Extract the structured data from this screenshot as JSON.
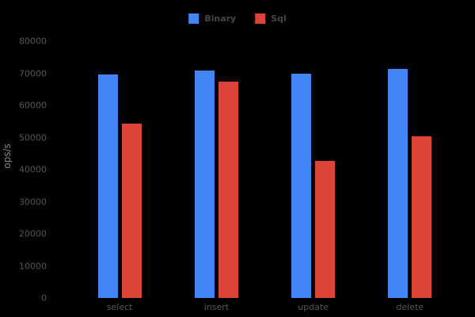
{
  "chart_data": {
    "type": "bar",
    "title": "",
    "xlabel": "",
    "ylabel": "ops/s",
    "categories": [
      "select",
      "insert",
      "update",
      "delete"
    ],
    "series": [
      {
        "name": "Binary",
        "color": "#4285f4",
        "values": [
          69600,
          70900,
          69800,
          71400
        ]
      },
      {
        "name": "Sql",
        "color": "#db4437",
        "values": [
          54400,
          67300,
          42800,
          50300
        ]
      }
    ],
    "ylim": [
      0,
      80000
    ],
    "yticks": [
      0,
      10000,
      20000,
      30000,
      40000,
      50000,
      60000,
      70000,
      80000
    ],
    "grid": false,
    "legend_position": "top-center",
    "background_color": "#000000",
    "axis_text_color": "#55565a",
    "legend_text_color": "#434548",
    "ylabel_text_color": "#87888a"
  },
  "layout_note": "grouped vertical bar chart, black background, no gridlines"
}
